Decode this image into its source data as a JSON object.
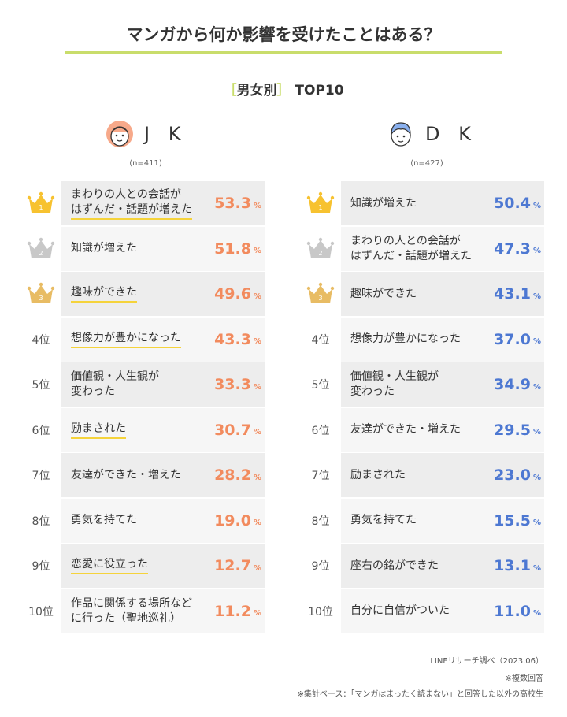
{
  "title": "マンガから何か影響を受けたことはある？",
  "subtitle": {
    "bracket_open": "［",
    "text": "男女別",
    "bracket_close": "］",
    "suffix": "TOP10"
  },
  "colors": {
    "accent_line": "#c9dd6b",
    "jk_value": "#f28b5e",
    "dk_value": "#4d78d2",
    "highlight": "#f5d33b",
    "gold": "#f7c230",
    "silver": "#c8c8c8",
    "bronze": "#e8bc64"
  },
  "footer": {
    "source": "LINEリサーチ調べ（2023.06）",
    "note1": "※複数回答",
    "note2": "※集計ベース：「マンガはまったく読まない」と回答した以外の高校生"
  },
  "chart_data": [
    {
      "type": "table",
      "group": "J K",
      "n": "(n=411)",
      "unit": "%",
      "rank_labels": [
        "1",
        "2",
        "3",
        "4位",
        "5位",
        "6位",
        "7位",
        "8位",
        "9位",
        "10位"
      ],
      "categories": [
        "まわりの人との会話がはずんだ・話題が増えた",
        "知識が増えた",
        "趣味ができた",
        "想像力が豊かになった",
        "価値観・人生観が変わった",
        "励まされた",
        "友達ができた・増えた",
        "勇気を持てた",
        "恋愛に役立った",
        "作品に関係する場所などに行った（聖地巡礼）"
      ],
      "display_lines": [
        [
          "まわりの人との会話が",
          "はずんだ・話題が増えた"
        ],
        [
          "知識が増えた"
        ],
        [
          "趣味ができた"
        ],
        [
          "想像力が豊かになった"
        ],
        [
          "価値観・人生観が",
          "変わった"
        ],
        [
          "励まされた"
        ],
        [
          "友達ができた・増えた"
        ],
        [
          "勇気を持てた"
        ],
        [
          "恋愛に役立った"
        ],
        [
          "作品に関係する場所など",
          "に行った（聖地巡礼）"
        ]
      ],
      "values": [
        53.3,
        51.8,
        49.6,
        43.3,
        33.3,
        30.7,
        28.2,
        19.0,
        12.7,
        11.2
      ],
      "value_labels": [
        "53.3",
        "51.8",
        "49.6",
        "43.3",
        "33.3",
        "30.7",
        "28.2",
        "19.0",
        "12.7",
        "11.2"
      ],
      "highlighted": [
        true,
        false,
        true,
        true,
        false,
        true,
        false,
        false,
        true,
        false
      ]
    },
    {
      "type": "table",
      "group": "D K",
      "n": "(n=427)",
      "unit": "%",
      "rank_labels": [
        "1",
        "2",
        "3",
        "4位",
        "5位",
        "6位",
        "7位",
        "8位",
        "9位",
        "10位"
      ],
      "categories": [
        "知識が増えた",
        "まわりの人との会話がはずんだ・話題が増えた",
        "趣味ができた",
        "想像力が豊かになった",
        "価値観・人生観が変わった",
        "友達ができた・増えた",
        "励まされた",
        "勇気を持てた",
        "座右の銘ができた",
        "自分に自信がついた"
      ],
      "display_lines": [
        [
          "知識が増えた"
        ],
        [
          "まわりの人との会話が",
          "はずんだ・話題が増えた"
        ],
        [
          "趣味ができた"
        ],
        [
          "想像力が豊かになった"
        ],
        [
          "価値観・人生観が",
          "変わった"
        ],
        [
          "友達ができた・増えた"
        ],
        [
          "励まされた"
        ],
        [
          "勇気を持てた"
        ],
        [
          "座右の銘ができた"
        ],
        [
          "自分に自信がついた"
        ]
      ],
      "values": [
        50.4,
        47.3,
        43.1,
        37.0,
        34.9,
        29.5,
        23.0,
        15.5,
        13.1,
        11.0
      ],
      "value_labels": [
        "50.4",
        "47.3",
        "43.1",
        "37.0",
        "34.9",
        "29.5",
        "23.0",
        "15.5",
        "13.1",
        "11.0"
      ],
      "highlighted": [
        false,
        false,
        false,
        false,
        false,
        false,
        false,
        false,
        false,
        false
      ]
    }
  ]
}
